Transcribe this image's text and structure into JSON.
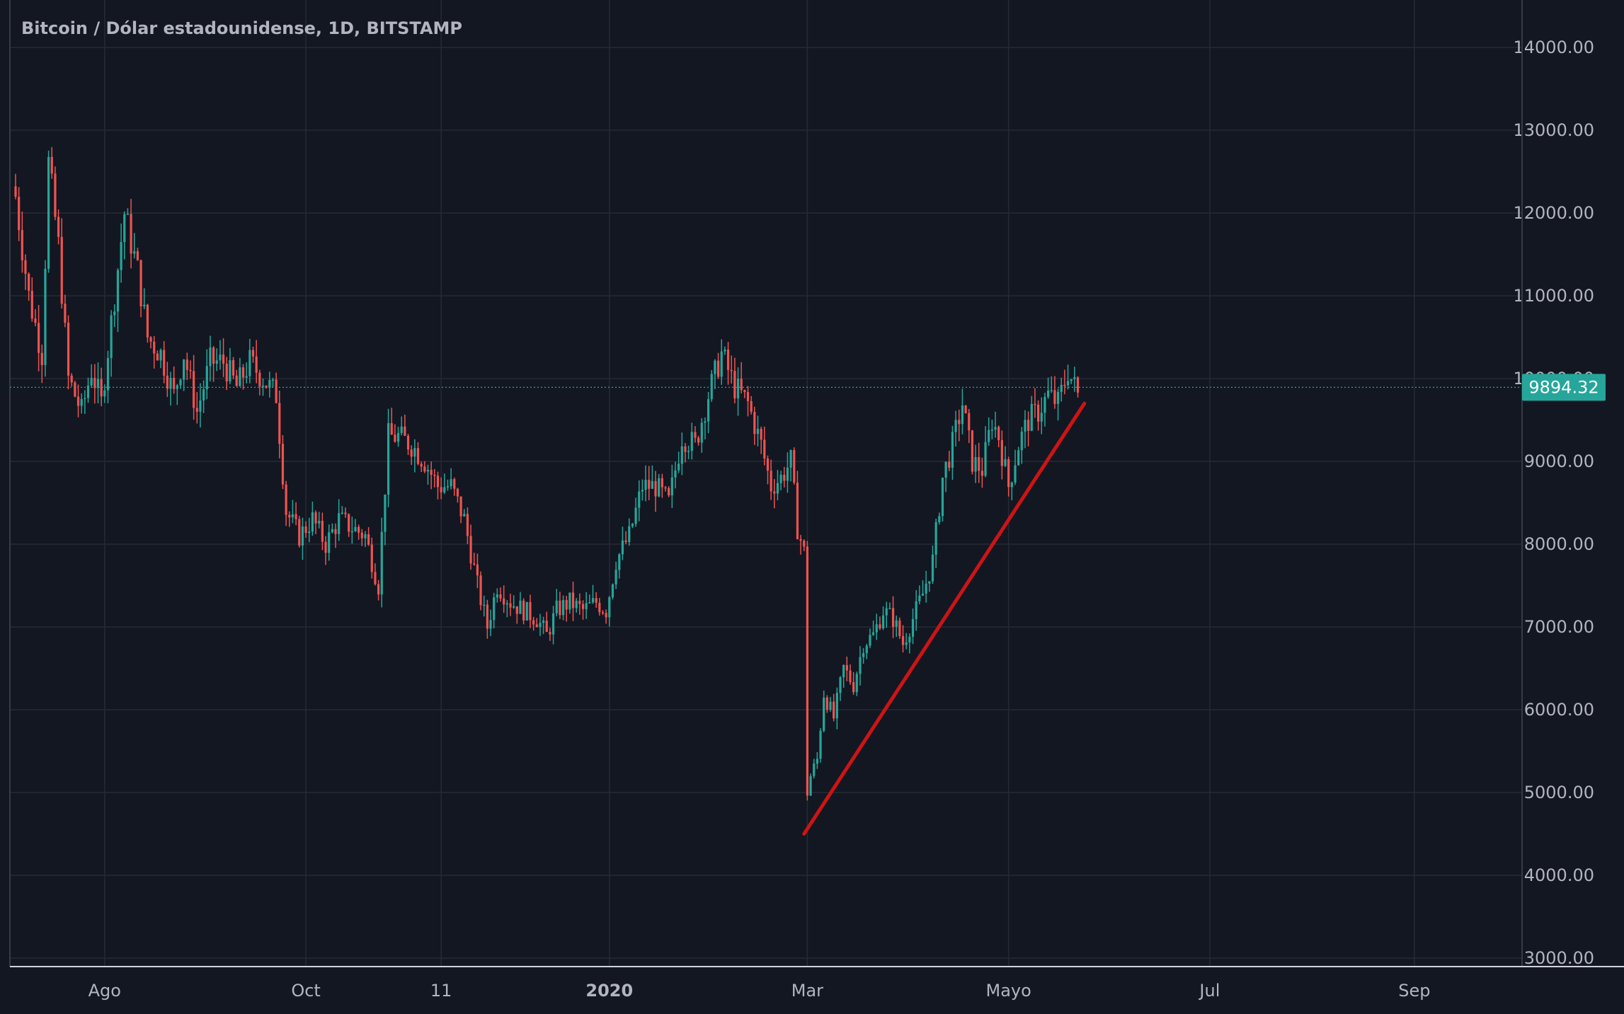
{
  "chart_data": {
    "type": "candlestick",
    "title": "Bitcoin / Dólar estadounidense, 1D, BITSTAMP",
    "current_price": "9894.32",
    "current_price_value": 9894.32,
    "ylim": [
      3000,
      14300
    ],
    "y_ticks": [
      "14000.00",
      "13000.00",
      "12000.00",
      "11000.00",
      "10000.00",
      "9000.00",
      "8000.00",
      "7000.00",
      "6000.00",
      "5000.00",
      "4000.00",
      "3000.00"
    ],
    "y_tick_values": [
      14000,
      13000,
      12000,
      11000,
      10000,
      9000,
      8000,
      7000,
      6000,
      5000,
      4000,
      3000
    ],
    "x_ticks": [
      {
        "label": "Ago",
        "index": 27,
        "bold": false
      },
      {
        "label": "Oct",
        "index": 88,
        "bold": false
      },
      {
        "label": "11",
        "index": 129,
        "bold": false
      },
      {
        "label": "2020",
        "index": 180,
        "bold": true
      },
      {
        "label": "Mar",
        "index": 240,
        "bold": false
      },
      {
        "label": "Mayo",
        "index": 301,
        "bold": false
      },
      {
        "label": "Jul",
        "index": 362,
        "bold": false
      },
      {
        "label": "Sep",
        "index": 424,
        "bold": false
      }
    ],
    "x_index_range": [
      -2,
      469
    ],
    "close_series": [
      {
        "i": 0,
        "v": 12200
      },
      {
        "i": 4,
        "v": 11000
      },
      {
        "i": 8,
        "v": 10300
      },
      {
        "i": 10,
        "v": 12600
      },
      {
        "i": 13,
        "v": 11600
      },
      {
        "i": 16,
        "v": 10000
      },
      {
        "i": 20,
        "v": 9600
      },
      {
        "i": 23,
        "v": 10100
      },
      {
        "i": 26,
        "v": 9700
      },
      {
        "i": 30,
        "v": 11000
      },
      {
        "i": 33,
        "v": 12000
      },
      {
        "i": 37,
        "v": 11300
      },
      {
        "i": 40,
        "v": 10500
      },
      {
        "i": 44,
        "v": 10300
      },
      {
        "i": 48,
        "v": 9800
      },
      {
        "i": 51,
        "v": 10300
      },
      {
        "i": 55,
        "v": 9600
      },
      {
        "i": 59,
        "v": 10200
      },
      {
        "i": 63,
        "v": 10200
      },
      {
        "i": 67,
        "v": 9900
      },
      {
        "i": 71,
        "v": 10200
      },
      {
        "i": 75,
        "v": 10000
      },
      {
        "i": 79,
        "v": 9800
      },
      {
        "i": 82,
        "v": 8400
      },
      {
        "i": 86,
        "v": 8100
      },
      {
        "i": 90,
        "v": 8300
      },
      {
        "i": 94,
        "v": 8000
      },
      {
        "i": 98,
        "v": 8300
      },
      {
        "i": 102,
        "v": 8200
      },
      {
        "i": 106,
        "v": 8100
      },
      {
        "i": 110,
        "v": 7500
      },
      {
        "i": 113,
        "v": 9300
      },
      {
        "i": 116,
        "v": 9300
      },
      {
        "i": 120,
        "v": 9200
      },
      {
        "i": 124,
        "v": 9000
      },
      {
        "i": 128,
        "v": 8700
      },
      {
        "i": 132,
        "v": 8700
      },
      {
        "i": 136,
        "v": 8300
      },
      {
        "i": 140,
        "v": 7500
      },
      {
        "i": 143,
        "v": 7000
      },
      {
        "i": 146,
        "v": 7500
      },
      {
        "i": 150,
        "v": 7300
      },
      {
        "i": 154,
        "v": 7200
      },
      {
        "i": 158,
        "v": 7100
      },
      {
        "i": 161,
        "v": 6900
      },
      {
        "i": 164,
        "v": 7200
      },
      {
        "i": 168,
        "v": 7300
      },
      {
        "i": 172,
        "v": 7200
      },
      {
        "i": 176,
        "v": 7300
      },
      {
        "i": 179,
        "v": 7200
      },
      {
        "i": 182,
        "v": 7800
      },
      {
        "i": 186,
        "v": 8100
      },
      {
        "i": 190,
        "v": 8700
      },
      {
        "i": 194,
        "v": 8700
      },
      {
        "i": 198,
        "v": 8500
      },
      {
        "i": 202,
        "v": 9300
      },
      {
        "i": 206,
        "v": 9200
      },
      {
        "i": 210,
        "v": 9800
      },
      {
        "i": 214,
        "v": 10300
      },
      {
        "i": 218,
        "v": 9900
      },
      {
        "i": 222,
        "v": 9700
      },
      {
        "i": 226,
        "v": 9200
      },
      {
        "i": 229,
        "v": 8700
      },
      {
        "i": 232,
        "v": 8800
      },
      {
        "i": 235,
        "v": 9000
      },
      {
        "i": 237,
        "v": 8200
      },
      {
        "i": 239,
        "v": 7900
      },
      {
        "i": 240,
        "v": 5000
      },
      {
        "i": 241,
        "v": 5200
      },
      {
        "i": 243,
        "v": 5400
      },
      {
        "i": 245,
        "v": 6200
      },
      {
        "i": 248,
        "v": 5900
      },
      {
        "i": 251,
        "v": 6500
      },
      {
        "i": 254,
        "v": 6300
      },
      {
        "i": 257,
        "v": 6800
      },
      {
        "i": 260,
        "v": 6900
      },
      {
        "i": 263,
        "v": 7200
      },
      {
        "i": 266,
        "v": 7100
      },
      {
        "i": 269,
        "v": 6800
      },
      {
        "i": 272,
        "v": 7100
      },
      {
        "i": 275,
        "v": 7400
      },
      {
        "i": 278,
        "v": 7800
      },
      {
        "i": 281,
        "v": 8800
      },
      {
        "i": 284,
        "v": 9200
      },
      {
        "i": 287,
        "v": 9700
      },
      {
        "i": 290,
        "v": 9000
      },
      {
        "i": 293,
        "v": 8900
      },
      {
        "i": 296,
        "v": 9500
      },
      {
        "i": 298,
        "v": 9300
      },
      {
        "i": 301,
        "v": 8700
      },
      {
        "i": 304,
        "v": 9200
      },
      {
        "i": 307,
        "v": 9500
      },
      {
        "i": 310,
        "v": 9600
      },
      {
        "i": 313,
        "v": 9800
      },
      {
        "i": 316,
        "v": 9700
      },
      {
        "i": 319,
        "v": 10100
      },
      {
        "i": 322,
        "v": 9800
      }
    ],
    "trendline": {
      "start": {
        "i": 239,
        "v": 4500
      },
      "end": {
        "i": 324,
        "v": 9700
      },
      "color": "#cc1414"
    },
    "colors": {
      "background": "#131722",
      "grid": "#262a35",
      "up": "#26a69a",
      "down": "#ef5350",
      "axis_text": "#b2b5be",
      "price_line": "#26a69a",
      "price_badge": "#26a69a"
    },
    "grid": true,
    "legend": "none"
  }
}
